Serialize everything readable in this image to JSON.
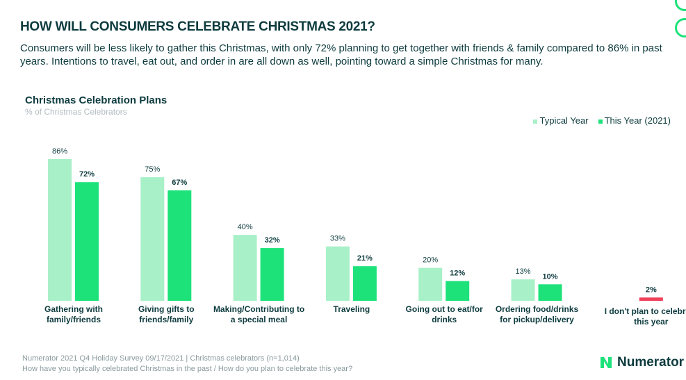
{
  "header": {
    "title": "HOW WILL CONSUMERS CELEBRATE CHRISTMAS 2021?",
    "subtitle": "Consumers will be less likely to gather this Christmas, with only 72% planning to get together with friends & family compared to 86% in past years. Intentions to travel, eat out, and order in are all down as well, pointing toward a simple Christmas for many."
  },
  "chart_data": {
    "type": "bar",
    "title": "Christmas Celebration Plans",
    "ylabel": "% of Christmas Celebrators",
    "legend": "top-right",
    "ylim": [
      0,
      86
    ],
    "categories": [
      "Gathering with family/friends",
      "Giving gifts to friends/family",
      "Making/Contributing to a special meal",
      "Traveling",
      "Going out to eat/for drinks",
      "Ordering food/drinks for pickup/delivery",
      "I don't plan to celebrate this year"
    ],
    "label_lines": [
      [
        "Gathering with",
        "family/friends"
      ],
      [
        "Giving gifts to",
        "friends/family"
      ],
      [
        "Making/Contributing to",
        "a special meal"
      ],
      [
        "Traveling"
      ],
      [
        "Going out to eat/for",
        "drinks"
      ],
      [
        "Ordering food/drinks",
        "for pickup/delivery"
      ],
      [
        "I don't plan to celebrate",
        "this year"
      ]
    ],
    "series": [
      {
        "name": "Typical Year",
        "color": "#a8f0c8",
        "values": [
          86,
          75,
          40,
          33,
          20,
          13,
          null
        ]
      },
      {
        "name": "This Year (2021)",
        "color": "#1de27a",
        "values": [
          72,
          67,
          32,
          21,
          12,
          10,
          2
        ]
      }
    ],
    "highlight_color": "#f0405a"
  },
  "footer": {
    "source": "Numerator 2021 Q4 Holiday Survey 09/17/2021 | Christmas celebrators (n=1,014)",
    "question": "How have you typically celebrated Christmas in the past / How do you plan to celebrate this year?",
    "logo": "Numerator"
  }
}
